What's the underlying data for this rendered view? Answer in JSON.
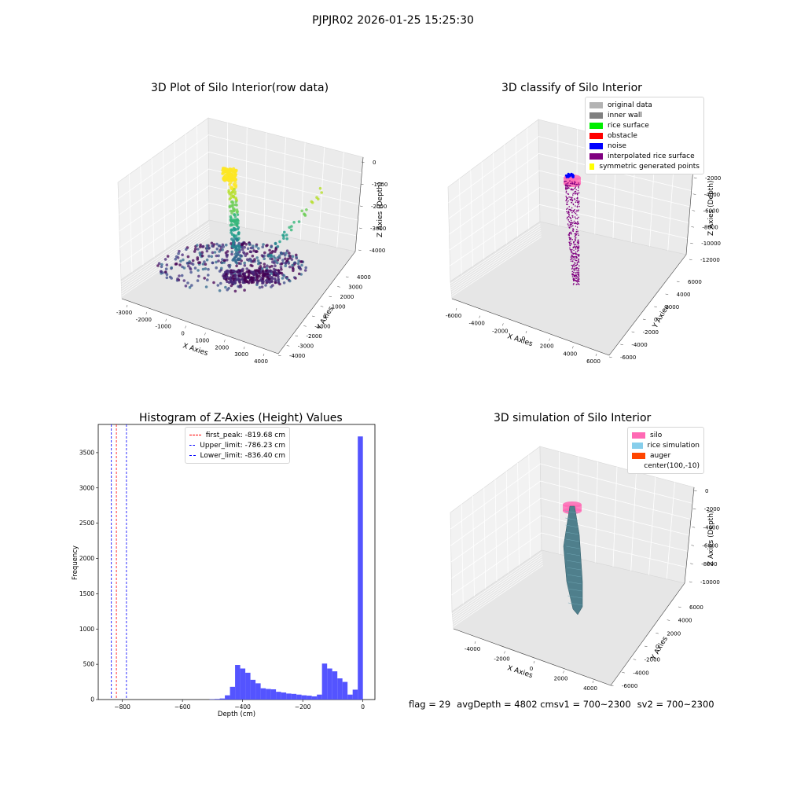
{
  "suptitle": "PJPJR02 2026-01-25 15:25:30",
  "colors": {
    "original": "#b3b3b3",
    "inner_wall": "#808080",
    "rice_surface": "#00ee00",
    "obstacle": "#ff0000",
    "noise": "#0000ff",
    "interpolated": "#800080",
    "symmetric": "#ffff00",
    "silo": "#ff69b4",
    "rice_sim": "#87ceeb",
    "auger": "#ff4500",
    "hist_bar": "#4b4bff",
    "first_peak": "#ff0000",
    "limit_line": "#0000ff"
  },
  "chart_data": [
    {
      "type": "scatter",
      "projection": "3d",
      "title": "3D Plot of Silo Interior(row data)",
      "xlabel": "X Axies",
      "ylabel": "Y Axies",
      "zlabel": "Z Axies (Depth)",
      "xticks": [
        "-3000",
        "-2000",
        "-1000",
        "0",
        "1000",
        "2000",
        "3000",
        "4000"
      ],
      "yticks": [
        "4000",
        "3000",
        "2000",
        "1000",
        "0",
        "-1000",
        "-2000",
        "-3000",
        "-4000"
      ],
      "zticks": [
        "0",
        "-1000",
        "-2000",
        "-3000",
        "-4000"
      ],
      "xlim": [
        -3500,
        4500
      ],
      "ylim": [
        -4000,
        4000
      ],
      "zlim": [
        -4800,
        0
      ],
      "colormap": "viridis"
    },
    {
      "type": "scatter",
      "projection": "3d",
      "title": "3D classify of Silo Interior",
      "xlabel": "X Axies",
      "ylabel": "Y Axies",
      "zlabel": "Z Axies (Depth)",
      "xticks": [
        "-6000",
        "-4000",
        "-2000",
        "0",
        "2000",
        "4000",
        "6000"
      ],
      "yticks": [
        "6000",
        "4000",
        "2000",
        "0",
        "-2000",
        "-4000",
        "-6000"
      ],
      "zticks": [
        "-2000",
        "-4000",
        "-6000",
        "-8000",
        "-10000",
        "-12000"
      ],
      "xlim": [
        -6500,
        6500
      ],
      "ylim": [
        -6500,
        6500
      ],
      "zlim": [
        -13000,
        0
      ],
      "legend": [
        {
          "label": "original data",
          "color_key": "original"
        },
        {
          "label": "inner wall",
          "color_key": "inner_wall"
        },
        {
          "label": "rice surface",
          "color_key": "rice_surface"
        },
        {
          "label": "obstacle",
          "color_key": "obstacle"
        },
        {
          "label": "noise",
          "color_key": "noise"
        },
        {
          "label": "interpolated rice surface",
          "color_key": "interpolated"
        },
        {
          "label": "symmetric generated points",
          "color_key": "symmetric"
        }
      ],
      "legend_placement": "top-right"
    },
    {
      "type": "bar",
      "title": "Histogram of Z-Axies (Height) Values",
      "xlabel": "Depth (cm)",
      "ylabel": "Frequency",
      "xlim": [
        -880,
        40
      ],
      "ylim": [
        0,
        3900
      ],
      "xticks": [
        -800,
        -600,
        -400,
        -200,
        0
      ],
      "yticks": [
        0,
        500,
        1000,
        1500,
        2000,
        2500,
        3000,
        3500
      ],
      "bin_width": 17,
      "bins": [
        {
          "x": -510,
          "v": 5
        },
        {
          "x": -493,
          "v": 8
        },
        {
          "x": -476,
          "v": 15
        },
        {
          "x": -459,
          "v": 60
        },
        {
          "x": -442,
          "v": 180
        },
        {
          "x": -425,
          "v": 490
        },
        {
          "x": -408,
          "v": 440
        },
        {
          "x": -391,
          "v": 380
        },
        {
          "x": -374,
          "v": 280
        },
        {
          "x": -357,
          "v": 230
        },
        {
          "x": -340,
          "v": 160
        },
        {
          "x": -323,
          "v": 150
        },
        {
          "x": -306,
          "v": 145
        },
        {
          "x": -289,
          "v": 110
        },
        {
          "x": -272,
          "v": 100
        },
        {
          "x": -255,
          "v": 85
        },
        {
          "x": -238,
          "v": 80
        },
        {
          "x": -221,
          "v": 70
        },
        {
          "x": -204,
          "v": 60
        },
        {
          "x": -187,
          "v": 55
        },
        {
          "x": -170,
          "v": 45
        },
        {
          "x": -153,
          "v": 70
        },
        {
          "x": -136,
          "v": 510
        },
        {
          "x": -119,
          "v": 440
        },
        {
          "x": -102,
          "v": 400
        },
        {
          "x": -85,
          "v": 300
        },
        {
          "x": -68,
          "v": 250
        },
        {
          "x": -51,
          "v": 70
        },
        {
          "x": -34,
          "v": 140
        },
        {
          "x": -17,
          "v": 3730
        }
      ],
      "vlines": [
        {
          "label": "first_peak: -819.68 cm",
          "x": -819.68,
          "color_key": "first_peak"
        },
        {
          "label": "Upper_limit: -786.23 cm",
          "x": -786.23,
          "color_key": "limit_line"
        },
        {
          "label": "Lower_limit: -836.40 cm",
          "x": -836.4,
          "color_key": "limit_line"
        }
      ],
      "legend_placement": "top-center"
    },
    {
      "type": "surface",
      "projection": "3d",
      "title": "3D simulation of Silo Interior",
      "xlabel": "X Axies",
      "ylabel": "Y Axies",
      "zlabel": "Z Axies (Depth)",
      "xticks": [
        "-4000",
        "-2000",
        "0",
        "2000",
        "4000"
      ],
      "yticks": [
        "6000",
        "4000",
        "2000",
        "0",
        "-2000",
        "-4000",
        "-6000"
      ],
      "zticks": [
        "0",
        "-2000",
        "-4000",
        "-6000",
        "-8000",
        "-10000"
      ],
      "xlim": [
        -5500,
        5500
      ],
      "ylim": [
        -6500,
        6500
      ],
      "zlim": [
        -11000,
        500
      ],
      "legend": [
        {
          "label": "silo",
          "color_key": "silo"
        },
        {
          "label": "rice simulation",
          "color_key": "rice_sim"
        },
        {
          "label": "auger",
          "color_key": "auger"
        },
        {
          "label": "center(100,-10)",
          "color_key": ""
        }
      ],
      "legend_placement": "top-right"
    }
  ],
  "status": {
    "flag": "flag = 29",
    "avg_depth": "avgDepth = 4802 cm",
    "sv1": "sv1 = 700~2300",
    "sv2": "sv2 = 700~2300"
  }
}
